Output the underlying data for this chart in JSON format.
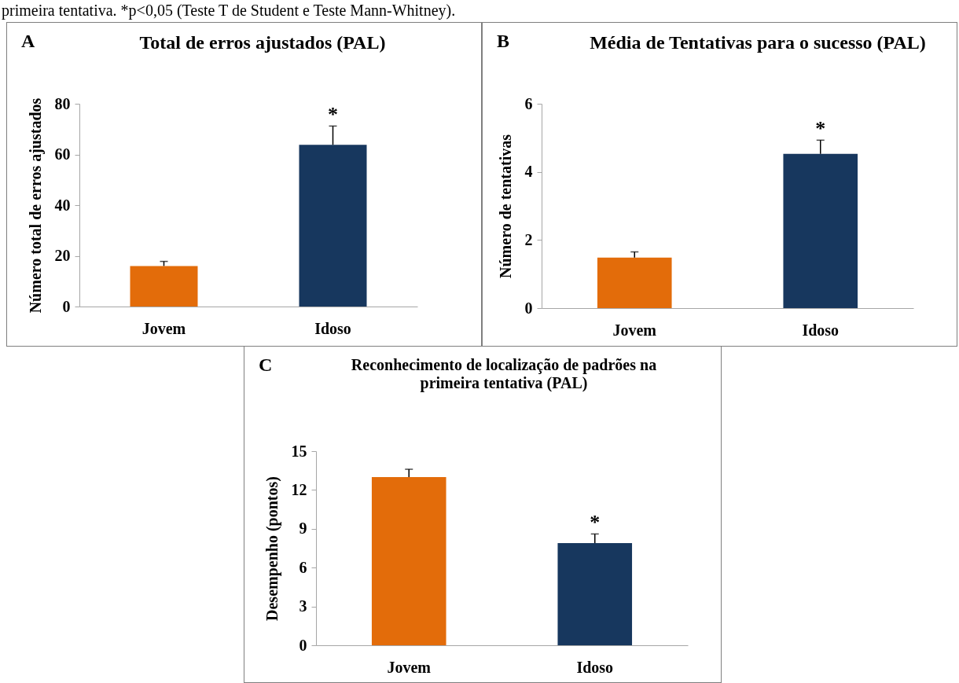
{
  "chart_data": [
    {
      "type": "bar",
      "title": "Total de erros ajustados (PAL)",
      "ylabel": "Número total de erros ajustados",
      "categories": [
        "Jovem",
        "Idoso"
      ],
      "values": [
        16.0,
        63.8
      ],
      "colors": [
        "#e36c0a",
        "#17375e"
      ],
      "errors": [
        [
          16.0,
          17.8
        ],
        [
          63.8,
          71.2
        ]
      ],
      "ylim": [
        0,
        80
      ],
      "yticks": [
        0,
        20,
        40,
        60,
        80
      ],
      "annotations": [
        "primeira tentativa. *p<0,05 (Teste T de Student e Teste Mann-Whitney).",
        "A",
        {
          "text": "*",
          "x": "Idoso",
          "y": 71.2
        }
      ]
    },
    {
      "type": "bar",
      "title": "Média de Tentativas para o sucesso (PAL)",
      "ylabel": "Número  de tentativas",
      "categories": [
        "Jovem",
        "Idoso"
      ],
      "values": [
        1.48,
        4.53
      ],
      "colors": [
        "#e36c0a",
        "#17375e"
      ],
      "errors": [
        [
          1.48,
          1.65
        ],
        [
          4.53,
          4.93
        ]
      ],
      "ylim": [
        0,
        6
      ],
      "yticks": [
        0,
        2,
        4,
        6
      ],
      "annotations": [
        "B",
        {
          "text": "*",
          "x": "Idoso",
          "y": 4.93
        }
      ]
    },
    {
      "type": "bar",
      "title": "Reconhecimento de localização de padrões na primeira tentativa (PAL)",
      "ylabel": "Desempenho (pontos)",
      "categories": [
        "Jovem",
        "Idoso"
      ],
      "values": [
        13.0,
        7.9
      ],
      "colors": [
        "#e36c0a",
        "#17375e"
      ],
      "errors": [
        [
          13.0,
          13.6
        ],
        [
          7.9,
          8.6
        ]
      ],
      "ylim": [
        0,
        15
      ],
      "yticks": [
        0,
        3,
        6,
        9,
        12,
        15
      ],
      "annotations": [
        "C",
        {
          "text": "*",
          "x": "Idoso",
          "y": 8.6
        }
      ]
    }
  ]
}
